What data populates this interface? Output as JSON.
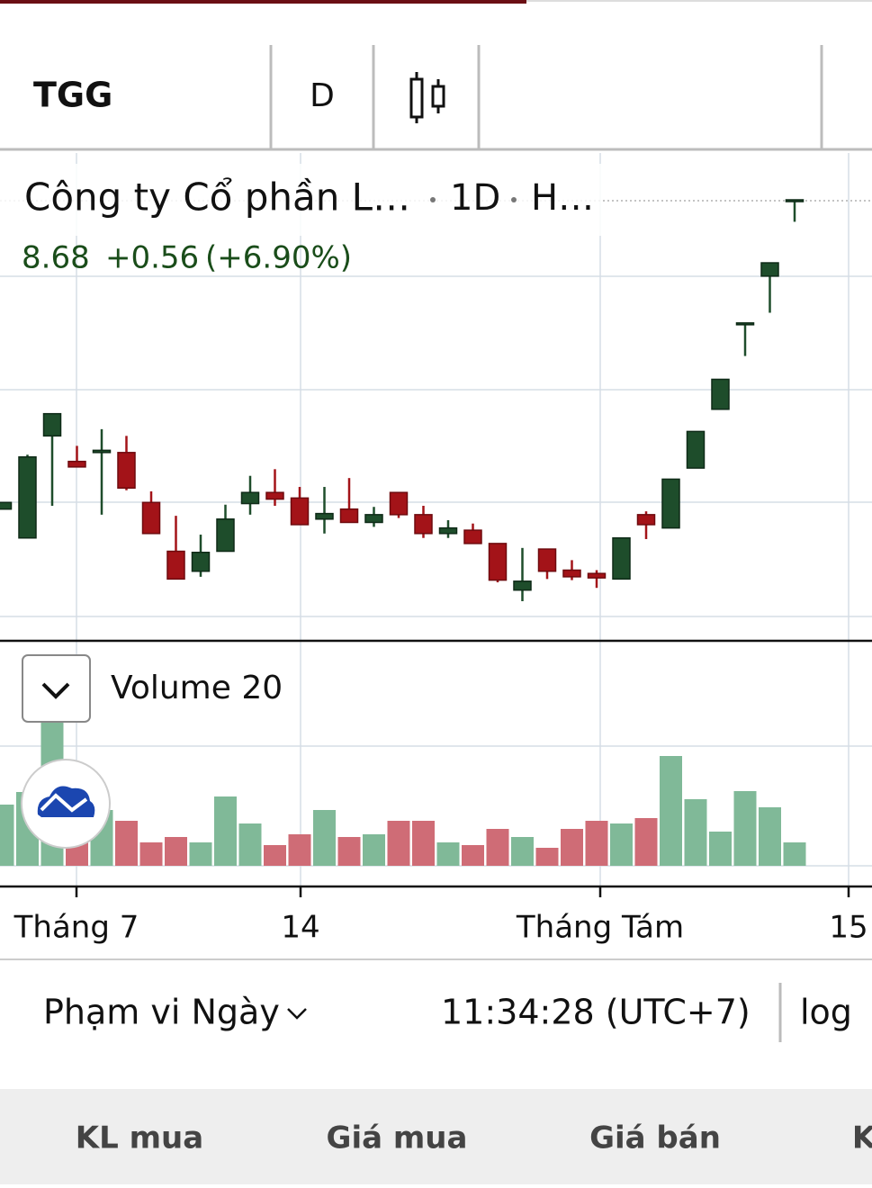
{
  "toolbar": {
    "symbol": "TGG",
    "interval": "D"
  },
  "chart_data": {
    "type": "candlestick",
    "title": "Công ty Cổ phần L…",
    "interval": "1D",
    "exchange": "H…",
    "last": "8.68",
    "change": "+0.56",
    "change_pct": "(+6.90%)",
    "up_color": "#1e4d2b",
    "down_color": "#a31318",
    "volume_up_color": "#80b998",
    "volume_down_color": "#cf6c76",
    "open": [
      5.9,
      5.64,
      6.56,
      6.33,
      6.41,
      6.41,
      5.96,
      5.52,
      5.34,
      5.52,
      5.95,
      6.05,
      6.0,
      5.81,
      5.9,
      5.78,
      6.05,
      5.85,
      5.68,
      5.71,
      5.59,
      5.17,
      5.54,
      5.35,
      5.32,
      5.27,
      5.85,
      5.73,
      6.27,
      6.8,
      7.57,
      8.0,
      8.68
    ],
    "high": [
      5.96,
      6.39,
      6.76,
      6.47,
      6.62,
      6.56,
      6.06,
      5.84,
      5.67,
      5.94,
      6.2,
      6.26,
      6.1,
      6.1,
      6.18,
      5.92,
      6.05,
      5.93,
      5.8,
      5.77,
      5.59,
      5.55,
      5.54,
      5.44,
      5.35,
      5.64,
      5.88,
      6.17,
      6.6,
      7.07,
      7.57,
      8.12,
      8.68
    ],
    "low": [
      5.9,
      5.64,
      5.93,
      6.28,
      5.85,
      6.07,
      5.68,
      5.27,
      5.29,
      5.52,
      5.85,
      5.93,
      5.76,
      5.68,
      5.78,
      5.74,
      5.82,
      5.64,
      5.64,
      5.59,
      5.24,
      5.07,
      5.27,
      5.26,
      5.19,
      5.27,
      5.63,
      5.73,
      6.27,
      6.8,
      7.28,
      7.67,
      8.49
    ],
    "close": [
      5.96,
      6.37,
      6.76,
      6.28,
      6.43,
      6.09,
      5.68,
      5.27,
      5.51,
      5.81,
      6.05,
      5.99,
      5.76,
      5.86,
      5.78,
      5.85,
      5.85,
      5.68,
      5.73,
      5.59,
      5.26,
      5.25,
      5.34,
      5.29,
      5.28,
      5.64,
      5.76,
      6.17,
      6.6,
      7.07,
      7.57,
      8.12,
      8.68
    ],
    "volume": {
      "name": "Volume 20",
      "values": [
        68,
        82,
        162,
        42,
        62,
        50,
        26,
        32,
        26,
        77,
        47,
        23,
        35,
        62,
        32,
        35,
        50,
        50,
        26,
        23,
        41,
        32,
        20,
        41,
        50,
        47,
        53,
        122,
        74,
        38,
        83,
        65,
        26
      ]
    },
    "x_axis_labels": [
      "Tháng 7",
      "14",
      "Tháng Tám",
      "15"
    ]
  },
  "footer": {
    "range": "Phạm vi Ngày",
    "time": "11:34:28 (UTC+7)",
    "scale": "log"
  },
  "tabs": [
    "KL mua",
    "Giá mua",
    "Giá bán",
    "K"
  ]
}
